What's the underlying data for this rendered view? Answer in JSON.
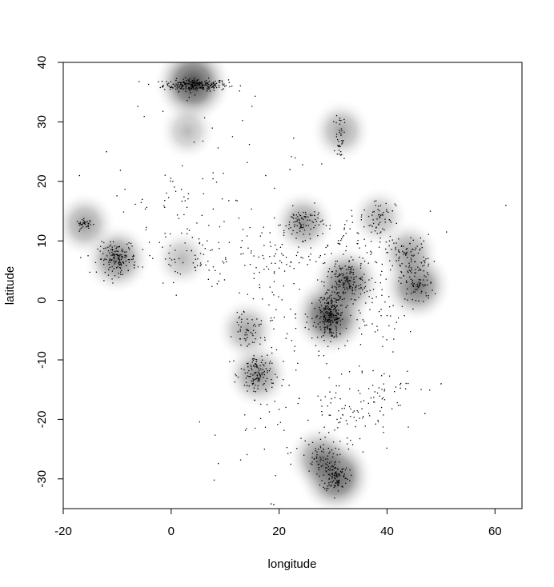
{
  "chart_data": {
    "type": "heatmap",
    "title": "",
    "xlabel": "longitude",
    "ylabel": "latitude",
    "xlim": [
      -20,
      65
    ],
    "ylim": [
      -35,
      40
    ],
    "x_ticks": [
      -20,
      0,
      20,
      40,
      60
    ],
    "y_ticks": [
      -30,
      -20,
      -10,
      0,
      10,
      20,
      30,
      40
    ],
    "grid": false,
    "legend": "none",
    "density_colors": {
      "low": "#ffffff",
      "high": "#444444"
    },
    "point_color": "#000000",
    "density_peaks": [
      {
        "lon": 4,
        "lat": 36.5,
        "intensity": 0.95
      },
      {
        "lon": 29.5,
        "lat": -2.5,
        "intensity": 0.95
      },
      {
        "lon": 32.5,
        "lat": 3,
        "intensity": 0.7
      },
      {
        "lon": 30.5,
        "lat": -29.5,
        "intensity": 0.85
      },
      {
        "lon": 27.5,
        "lat": -26.5,
        "intensity": 0.45
      },
      {
        "lon": 45.5,
        "lat": 2.5,
        "intensity": 0.65
      },
      {
        "lon": 44,
        "lat": 8,
        "intensity": 0.35
      },
      {
        "lon": -10,
        "lat": 7,
        "intensity": 0.55
      },
      {
        "lon": -16,
        "lat": 12.8,
        "intensity": 0.35
      },
      {
        "lon": 24.5,
        "lat": 13,
        "intensity": 0.4
      },
      {
        "lon": 16,
        "lat": -12.5,
        "intensity": 0.45
      },
      {
        "lon": 14,
        "lat": -5,
        "intensity": 0.3
      },
      {
        "lon": 31.5,
        "lat": 28.5,
        "intensity": 0.3
      },
      {
        "lon": 3,
        "lat": 28.5,
        "intensity": 0.15
      },
      {
        "lon": 2,
        "lat": 7,
        "intensity": 0.15
      },
      {
        "lon": 38.5,
        "lat": 14,
        "intensity": 0.2
      }
    ],
    "point_clusters": [
      {
        "lon": 4.5,
        "lat": 36.2,
        "sd_lon": 3.0,
        "sd_lat": 0.5,
        "n": 260
      },
      {
        "lon": 29.5,
        "lat": -2.5,
        "sd_lon": 1.2,
        "sd_lat": 2.0,
        "n": 230
      },
      {
        "lon": 32.5,
        "lat": 3.0,
        "sd_lon": 2.0,
        "sd_lat": 1.6,
        "n": 140
      },
      {
        "lon": 30.5,
        "lat": -29.5,
        "sd_lon": 1.2,
        "sd_lat": 1.3,
        "n": 110
      },
      {
        "lon": 27.5,
        "lat": -26.5,
        "sd_lon": 1.6,
        "sd_lat": 1.5,
        "n": 60
      },
      {
        "lon": 45.5,
        "lat": 3.0,
        "sd_lon": 1.5,
        "sd_lat": 2.0,
        "n": 90
      },
      {
        "lon": 44.0,
        "lat": 8.0,
        "sd_lon": 2.2,
        "sd_lat": 1.5,
        "n": 70
      },
      {
        "lon": -10.0,
        "lat": 7.0,
        "sd_lon": 1.8,
        "sd_lat": 1.3,
        "n": 150
      },
      {
        "lon": -16.0,
        "lat": 12.8,
        "sd_lon": 0.8,
        "sd_lat": 0.4,
        "n": 35
      },
      {
        "lon": 24.5,
        "lat": 13.0,
        "sd_lon": 1.8,
        "sd_lat": 1.3,
        "n": 90
      },
      {
        "lon": 16.0,
        "lat": -12.5,
        "sd_lon": 1.6,
        "sd_lat": 2.0,
        "n": 130
      },
      {
        "lon": 14.0,
        "lat": -5.0,
        "sd_lon": 1.2,
        "sd_lat": 1.2,
        "n": 45
      },
      {
        "lon": 31.3,
        "lat": 27.5,
        "sd_lon": 0.4,
        "sd_lat": 2.0,
        "n": 40
      },
      {
        "lon": 38.5,
        "lat": 14.0,
        "sd_lon": 1.5,
        "sd_lat": 1.8,
        "n": 45
      },
      {
        "lon": 33.0,
        "lat": 9.0,
        "sd_lon": 4.0,
        "sd_lat": 3.0,
        "n": 90
      },
      {
        "lon": 17.0,
        "lat": 7.5,
        "sd_lon": 5.0,
        "sd_lat": 3.0,
        "n": 90
      },
      {
        "lon": 3.0,
        "lat": 8.0,
        "sd_lon": 4.0,
        "sd_lat": 3.0,
        "n": 60
      },
      {
        "lon": 2.0,
        "lat": 16.0,
        "sd_lon": 6.0,
        "sd_lat": 3.0,
        "n": 45
      },
      {
        "lon": 22.0,
        "lat": -4.0,
        "sd_lon": 6.0,
        "sd_lat": 4.0,
        "n": 60
      },
      {
        "lon": 33.0,
        "lat": -18.0,
        "sd_lon": 4.0,
        "sd_lat": 4.0,
        "n": 90
      },
      {
        "lon": 40.0,
        "lat": -15.0,
        "sd_lon": 3.0,
        "sd_lat": 2.0,
        "n": 30
      },
      {
        "lon": 38.0,
        "lat": -2.0,
        "sd_lon": 3.0,
        "sd_lat": 3.0,
        "n": 60
      },
      {
        "lon": 20.0,
        "lat": -22.0,
        "sd_lon": 6.0,
        "sd_lat": 5.0,
        "n": 40
      },
      {
        "lon": 8.0,
        "lat": 26.0,
        "sd_lon": 8.0,
        "sd_lat": 5.0,
        "n": 30
      }
    ],
    "outliers": [
      {
        "lon": 62,
        "lat": 16
      },
      {
        "lon": 51,
        "lat": 11.5
      },
      {
        "lon": 48,
        "lat": 15
      },
      {
        "lon": -17,
        "lat": 21
      },
      {
        "lon": -12,
        "lat": 25
      },
      {
        "lon": 19,
        "lat": -34.3
      },
      {
        "lon": 18.5,
        "lat": -34.2
      },
      {
        "lon": 50,
        "lat": -14
      },
      {
        "lon": 47,
        "lat": -19
      },
      {
        "lon": 22,
        "lat": 22
      },
      {
        "lon": 17.5,
        "lat": 21
      }
    ]
  }
}
